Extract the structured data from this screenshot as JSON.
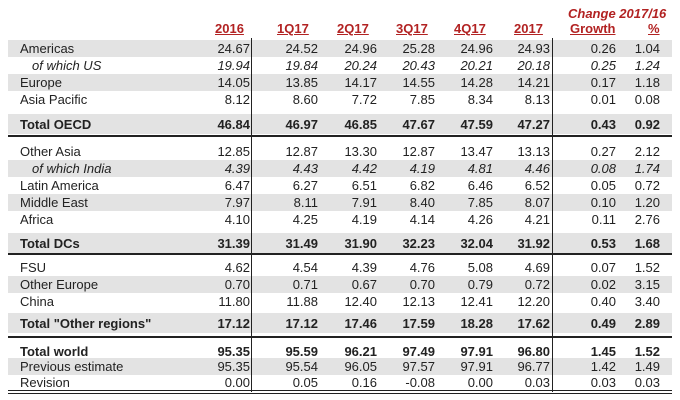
{
  "header": {
    "change_label": "Change 2017/16",
    "columns": [
      "2016",
      "1Q17",
      "2Q17",
      "3Q17",
      "4Q17",
      "2017",
      "Growth",
      "%"
    ]
  },
  "rows": [
    {
      "label": "Americas",
      "values": [
        "24.67",
        "24.52",
        "24.96",
        "25.28",
        "24.96",
        "24.93",
        "0.26",
        "1.04"
      ]
    },
    {
      "label": "of which US",
      "values": [
        "19.94",
        "19.84",
        "20.24",
        "20.43",
        "20.21",
        "20.18",
        "0.25",
        "1.24"
      ]
    },
    {
      "label": "Europe",
      "values": [
        "14.05",
        "13.85",
        "14.17",
        "14.55",
        "14.28",
        "14.21",
        "0.17",
        "1.18"
      ]
    },
    {
      "label": "Asia Pacific",
      "values": [
        "8.12",
        "8.60",
        "7.72",
        "7.85",
        "8.34",
        "8.13",
        "0.01",
        "0.08"
      ]
    },
    {
      "label": "Total OECD",
      "values": [
        "46.84",
        "46.97",
        "46.85",
        "47.67",
        "47.59",
        "47.27",
        "0.43",
        "0.92"
      ]
    },
    {
      "label": "Other Asia",
      "values": [
        "12.85",
        "12.87",
        "13.30",
        "12.87",
        "13.47",
        "13.13",
        "0.27",
        "2.12"
      ]
    },
    {
      "label": "of which India",
      "values": [
        "4.39",
        "4.43",
        "4.42",
        "4.19",
        "4.81",
        "4.46",
        "0.08",
        "1.74"
      ]
    },
    {
      "label": "Latin America",
      "values": [
        "6.47",
        "6.27",
        "6.51",
        "6.82",
        "6.46",
        "6.52",
        "0.05",
        "0.72"
      ]
    },
    {
      "label": "Middle East",
      "values": [
        "7.97",
        "8.11",
        "7.91",
        "8.40",
        "7.85",
        "8.07",
        "0.10",
        "1.20"
      ]
    },
    {
      "label": "Africa",
      "values": [
        "4.10",
        "4.25",
        "4.19",
        "4.14",
        "4.26",
        "4.21",
        "0.11",
        "2.76"
      ]
    },
    {
      "label": "Total DCs",
      "values": [
        "31.39",
        "31.49",
        "31.90",
        "32.23",
        "32.04",
        "31.92",
        "0.53",
        "1.68"
      ]
    },
    {
      "label": "FSU",
      "values": [
        "4.62",
        "4.54",
        "4.39",
        "4.76",
        "5.08",
        "4.69",
        "0.07",
        "1.52"
      ]
    },
    {
      "label": "Other Europe",
      "values": [
        "0.70",
        "0.71",
        "0.67",
        "0.70",
        "0.79",
        "0.72",
        "0.02",
        "3.15"
      ]
    },
    {
      "label": "China",
      "values": [
        "11.80",
        "11.88",
        "12.40",
        "12.13",
        "12.41",
        "12.20",
        "0.40",
        "3.40"
      ]
    },
    {
      "label": "Total \"Other regions\"",
      "values": [
        "17.12",
        "17.12",
        "17.46",
        "17.59",
        "18.28",
        "17.62",
        "0.49",
        "2.89"
      ]
    },
    {
      "label": "Total world",
      "values": [
        "95.35",
        "95.59",
        "96.21",
        "97.49",
        "97.91",
        "96.80",
        "1.45",
        "1.52"
      ]
    },
    {
      "label": "Previous estimate",
      "values": [
        "95.35",
        "95.54",
        "96.05",
        "97.57",
        "97.91",
        "96.77",
        "1.42",
        "1.49"
      ]
    },
    {
      "label": "Revision",
      "values": [
        "0.00",
        "0.05",
        "0.16",
        "-0.08",
        "0.00",
        "0.03",
        "0.03",
        "0.03"
      ]
    }
  ]
}
